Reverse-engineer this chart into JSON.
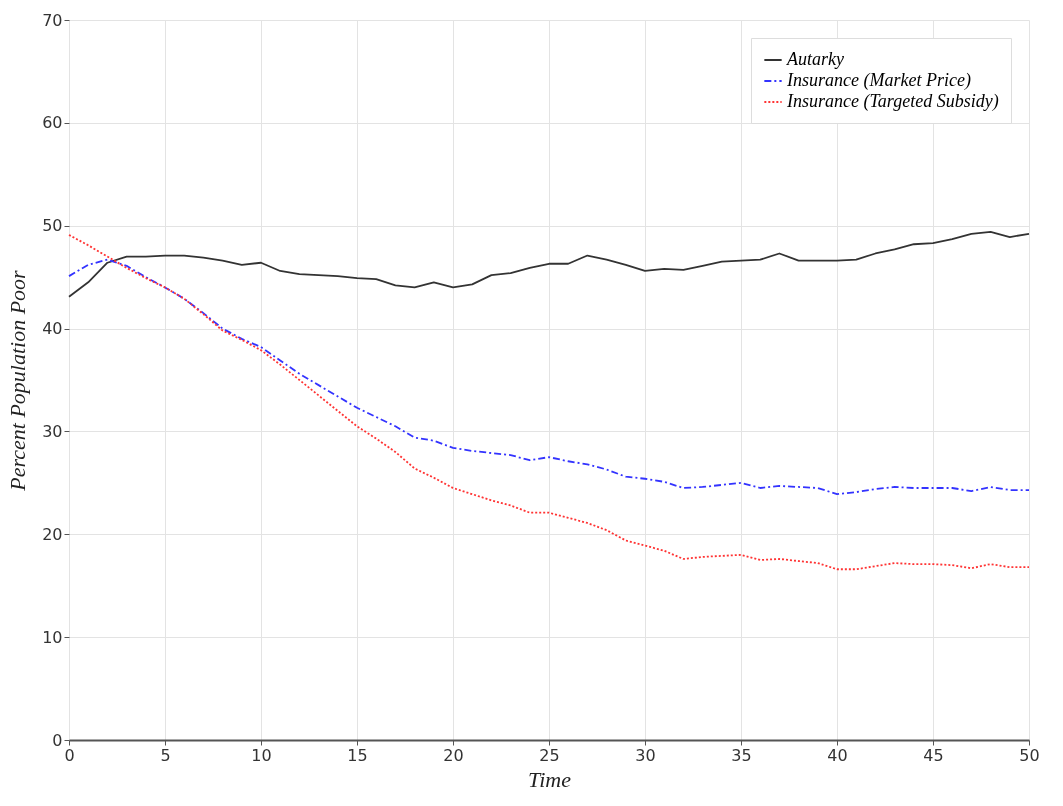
{
  "chart_data": {
    "type": "line",
    "xlabel": "Time",
    "ylabel": "Percent Population Poor",
    "x": [
      0,
      1,
      2,
      3,
      4,
      5,
      6,
      7,
      8,
      9,
      10,
      11,
      12,
      13,
      14,
      15,
      16,
      17,
      18,
      19,
      20,
      21,
      22,
      23,
      24,
      25,
      26,
      27,
      28,
      29,
      30,
      31,
      32,
      33,
      34,
      35,
      36,
      37,
      38,
      39,
      40,
      41,
      42,
      43,
      44,
      45,
      46,
      47,
      48,
      49,
      50
    ],
    "series": [
      {
        "name": "Autarky",
        "color": "#333333",
        "line_style": "solid",
        "values": [
          43.1,
          44.5,
          46.4,
          47.0,
          47.0,
          47.1,
          47.1,
          46.9,
          46.6,
          46.2,
          46.4,
          45.6,
          45.3,
          45.2,
          45.1,
          44.9,
          44.8,
          44.2,
          44.0,
          44.5,
          44.0,
          44.3,
          45.2,
          45.4,
          45.9,
          46.3,
          46.3,
          47.1,
          46.7,
          46.2,
          45.6,
          45.8,
          45.7,
          46.1,
          46.5,
          46.6,
          46.7,
          47.3,
          46.6,
          46.6,
          46.6,
          46.7,
          47.3,
          47.7,
          48.2,
          48.3,
          48.7,
          49.2,
          49.4,
          48.9,
          49.2
        ]
      },
      {
        "name": "Insurance (Market Price)",
        "color": "#3333ff",
        "line_style": "dashed",
        "values": [
          45.1,
          46.2,
          46.7,
          46.1,
          45.0,
          44.0,
          42.9,
          41.5,
          40.0,
          39.0,
          38.2,
          36.9,
          35.6,
          34.5,
          33.4,
          32.3,
          31.4,
          30.5,
          29.4,
          29.1,
          28.4,
          28.1,
          27.9,
          27.7,
          27.2,
          27.5,
          27.1,
          26.8,
          26.3,
          25.6,
          25.4,
          25.1,
          24.5,
          24.6,
          24.8,
          25.0,
          24.5,
          24.7,
          24.6,
          24.5,
          23.9,
          24.1,
          24.4,
          24.6,
          24.5,
          24.5,
          24.5,
          24.2,
          24.6,
          24.3,
          24.3
        ]
      },
      {
        "name": "Insurance (Targeted Subsidy)",
        "color": "#ff3333",
        "line_style": "dotted",
        "values": [
          49.1,
          48.1,
          47.0,
          45.9,
          44.9,
          44.0,
          42.9,
          41.4,
          39.8,
          38.9,
          37.9,
          36.5,
          35.0,
          33.5,
          32.0,
          30.5,
          29.3,
          28.0,
          26.4,
          25.5,
          24.5,
          23.9,
          23.3,
          22.8,
          22.1,
          22.1,
          21.6,
          21.1,
          20.4,
          19.4,
          18.9,
          18.4,
          17.6,
          17.8,
          17.9,
          18.0,
          17.5,
          17.6,
          17.4,
          17.2,
          16.6,
          16.6,
          16.9,
          17.2,
          17.1,
          17.1,
          17.0,
          16.7,
          17.1,
          16.8,
          16.8
        ]
      }
    ],
    "xlim": [
      0,
      50
    ],
    "xticks": [
      0,
      5,
      10,
      15,
      20,
      25,
      30,
      35,
      40,
      45,
      50
    ],
    "ylim": [
      0,
      70
    ],
    "yticks": [
      0,
      10,
      20,
      30,
      40,
      50,
      60,
      70
    ],
    "grid": true,
    "legend": "top right",
    "marker": "none"
  }
}
